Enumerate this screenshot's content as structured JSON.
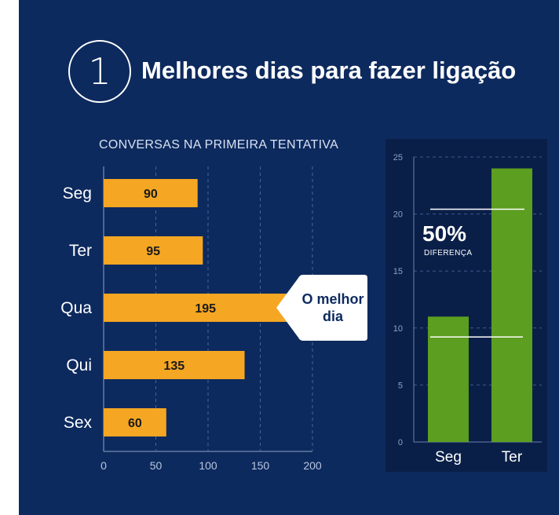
{
  "header": {
    "number": "1",
    "title": "Melhores dias para fazer ligação"
  },
  "colors": {
    "background": "#0d2a5e",
    "bar_orange": "#f5a623",
    "bar_green": "#5c9e1f",
    "inset_background": "#0a1f48"
  },
  "callout": {
    "line1": "O melhor",
    "line2": "dia"
  },
  "diff": {
    "percent": "50%",
    "label": "DIFERENÇA"
  },
  "chart_data": [
    {
      "type": "bar",
      "orientation": "horizontal",
      "title": "CONVERSAS NA PRIMEIRA TENTATIVA",
      "categories": [
        "Seg",
        "Ter",
        "Qua",
        "Qui",
        "Sex"
      ],
      "values": [
        90,
        95,
        195,
        135,
        60
      ],
      "value_labels": [
        "90",
        "95",
        "195",
        "135",
        "60"
      ],
      "xlim": [
        0,
        200
      ],
      "xticks": [
        "0",
        "50",
        "100",
        "150",
        "200"
      ],
      "grid": true
    },
    {
      "type": "bar",
      "orientation": "vertical",
      "categories": [
        "Seg",
        "Ter"
      ],
      "values": [
        11,
        24
      ],
      "ylim": [
        0,
        25
      ],
      "yticks": [
        "0",
        "5",
        "10",
        "15",
        "20",
        "25"
      ],
      "grid": true,
      "annotation": "50% DIFERENÇA"
    }
  ]
}
